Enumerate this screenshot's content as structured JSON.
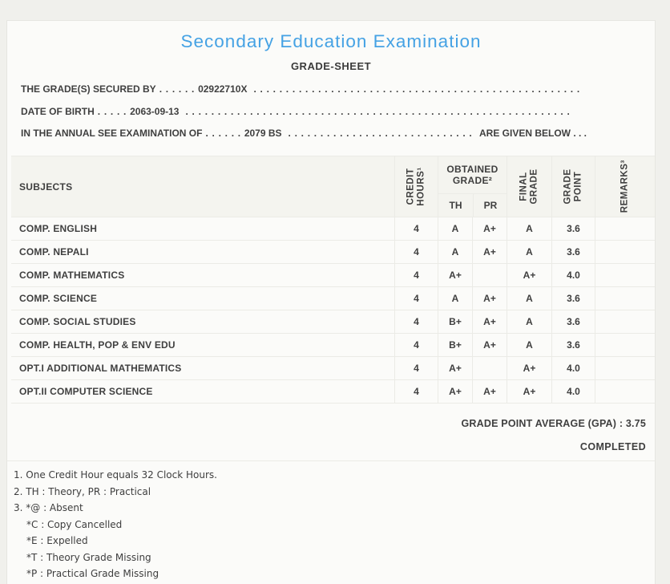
{
  "header": {
    "title": "Secondary Education Examination",
    "subtitle": "GRADE-SHEET"
  },
  "info_lines": [
    {
      "label": "THE GRADE(S) SECURED BY",
      "dots": ". . . . . .",
      "value": "02922710X",
      "suffix": ""
    },
    {
      "label": "DATE OF BIRTH",
      "dots": ". . . . .",
      "value": "2063-09-13",
      "suffix": ""
    },
    {
      "label": "IN THE ANNUAL SEE EXAMINATION OF",
      "dots": ". . . . . .",
      "value": "2079 BS",
      "suffix": "ARE GIVEN BELOW . . ."
    }
  ],
  "dots_fill": ". . . . . . . . . . . . . . . . . . . . . . . . . . . . . . . . . . . . . . . . . . . . . . . . . . . . . . . . . . . . . . . . . . . . . . . . . . . . . . . . . . . . . . . . . . . . . . . . . . . . . . . . . . . . . . . . . . . . . . . .",
  "table": {
    "headers": {
      "subjects": "SUBJECTS",
      "credit_hours": "CREDIT\nHOURS¹",
      "obtained_grade": "OBTAINED\nGRADE²",
      "th": "TH",
      "pr": "PR",
      "final_grade": "FINAL\nGRADE",
      "grade_point": "GRADE\nPOINT",
      "remarks": "REMARKS³"
    },
    "rows": [
      {
        "subject": "COMP. ENGLISH",
        "credit": "4",
        "th": "A",
        "pr": "A+",
        "final": "A",
        "gp": "3.6",
        "remarks": ""
      },
      {
        "subject": "COMP. NEPALI",
        "credit": "4",
        "th": "A",
        "pr": "A+",
        "final": "A",
        "gp": "3.6",
        "remarks": ""
      },
      {
        "subject": "COMP. MATHEMATICS",
        "credit": "4",
        "th": "A+",
        "pr": "",
        "final": "A+",
        "gp": "4.0",
        "remarks": ""
      },
      {
        "subject": "COMP. SCIENCE",
        "credit": "4",
        "th": "A",
        "pr": "A+",
        "final": "A",
        "gp": "3.6",
        "remarks": ""
      },
      {
        "subject": "COMP. SOCIAL STUDIES",
        "credit": "4",
        "th": "B+",
        "pr": "A+",
        "final": "A",
        "gp": "3.6",
        "remarks": ""
      },
      {
        "subject": "COMP. HEALTH, POP & ENV EDU",
        "credit": "4",
        "th": "B+",
        "pr": "A+",
        "final": "A",
        "gp": "3.6",
        "remarks": ""
      },
      {
        "subject": "OPT.I ADDITIONAL MATHEMATICS",
        "credit": "4",
        "th": "A+",
        "pr": "",
        "final": "A+",
        "gp": "4.0",
        "remarks": ""
      },
      {
        "subject": "OPT.II COMPUTER SCIENCE",
        "credit": "4",
        "th": "A+",
        "pr": "A+",
        "final": "A+",
        "gp": "4.0",
        "remarks": ""
      }
    ]
  },
  "summary": {
    "gpa_line": "GRADE POINT AVERAGE (GPA) : 3.75",
    "status": "COMPLETED"
  },
  "footnotes": [
    "1. One Credit Hour equals 32 Clock Hours.",
    "2. TH : Theory, PR : Practical",
    "3. *@ : Absent",
    "*C : Copy Cancelled",
    "*E : Expelled",
    "*T : Theory Grade Missing",
    "*P : Practical Grade Missing"
  ],
  "colors": {
    "title_blue": "#45a2e4",
    "text": "#3f3f3f",
    "panel_background": "#fbfbf9",
    "outer_background": "#f0f0ec"
  }
}
